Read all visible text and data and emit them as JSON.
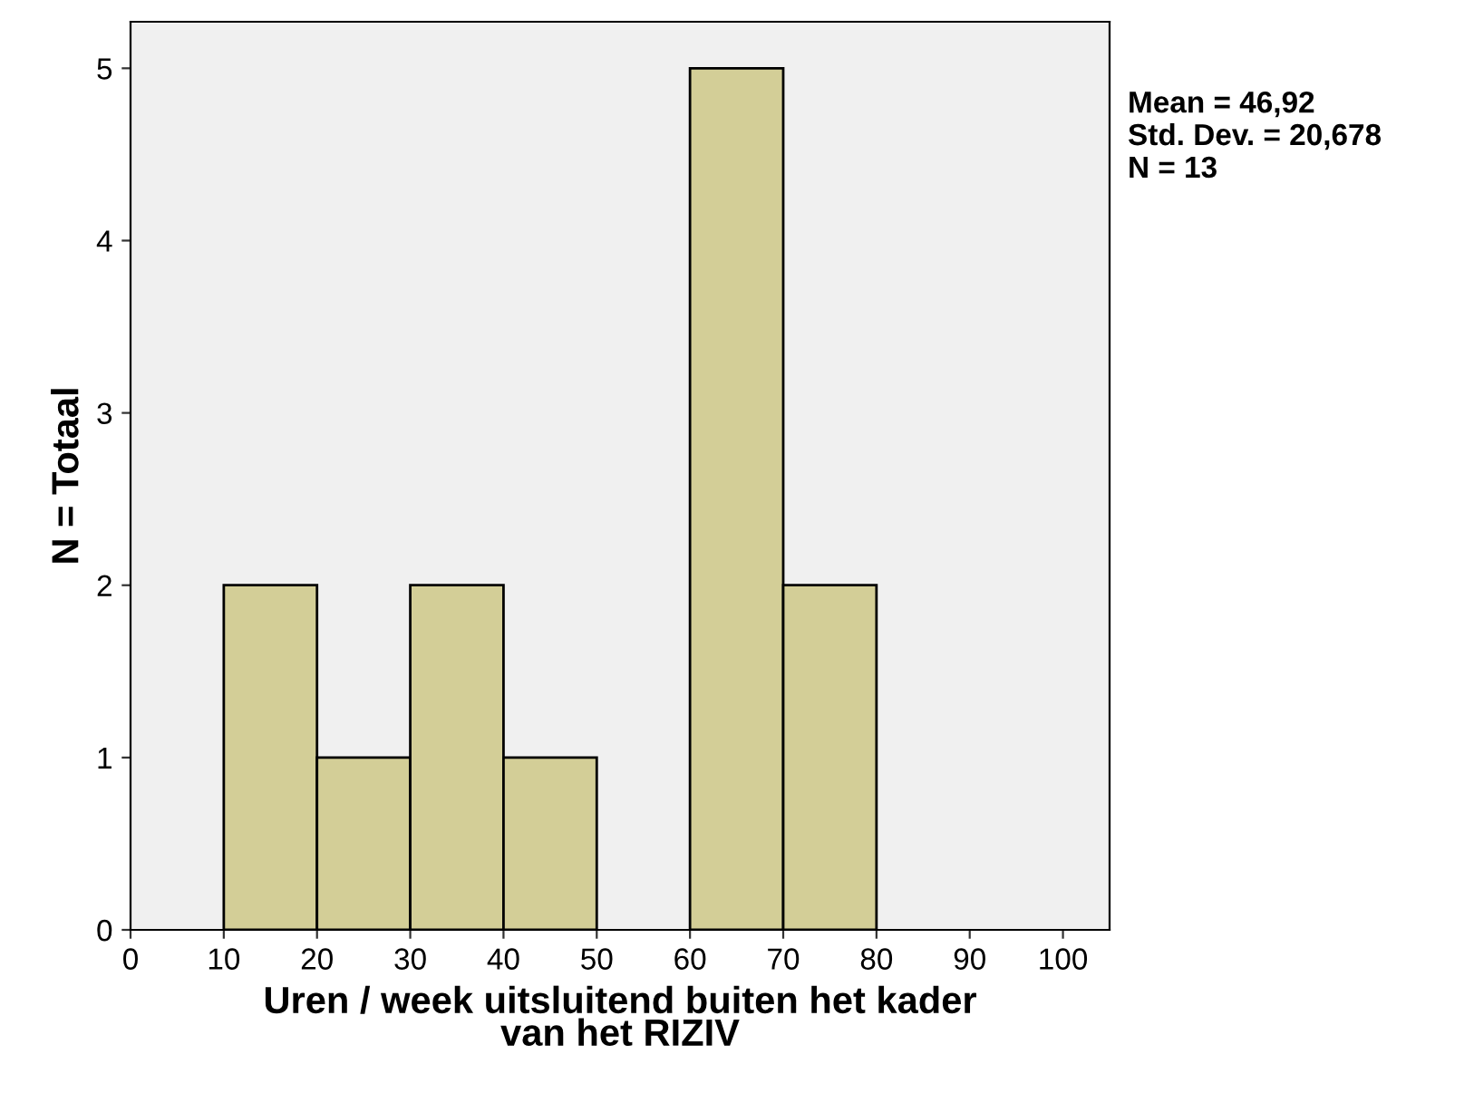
{
  "chart_data": {
    "type": "histogram",
    "xlabel": "Uren / week uitsluitend buiten het kader\nvan het RIZIV",
    "ylabel": "N = Totaal",
    "bins": [
      0,
      10,
      20,
      30,
      40,
      50,
      60,
      70,
      80,
      90,
      100
    ],
    "values": [
      0,
      2,
      1,
      2,
      1,
      0,
      5,
      2,
      0,
      0
    ],
    "color": "#d3ce97",
    "xlim": [
      0,
      105
    ],
    "xticks": [
      0,
      10,
      20,
      30,
      40,
      50,
      60,
      70,
      80,
      90,
      100
    ],
    "ylim": [
      0,
      5.27
    ],
    "yticks": [
      0,
      1,
      2,
      3,
      4,
      5
    ],
    "grid": false,
    "annotations": [
      "Mean = 46,92\nStd. Dev. = 20,678\nN = 13"
    ]
  }
}
